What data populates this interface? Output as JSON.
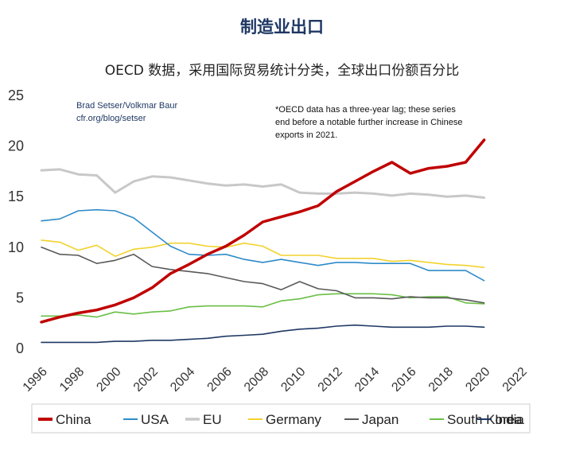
{
  "title": "制造业出口",
  "subtitle": "OECD 数据，采用国际贸易统计分类，全球出口份额百分比",
  "source_lines": [
    "Brad Setser/Volkmar Baur",
    "cfr.org/blog/setser"
  ],
  "note_lines": [
    "*OECD data has a three-year lag; these series",
    "end before a notable further increase in Chinese",
    "exports in 2021."
  ],
  "chart_data": {
    "type": "line",
    "title": "制造业出口",
    "subtitle": "OECD 数据，采用国际贸易统计分类，全球出口份额百分比",
    "xlabel": "",
    "ylabel": "",
    "xlim": [
      1996,
      2022
    ],
    "ylim": [
      0,
      25
    ],
    "yticks": [
      0,
      5,
      10,
      15,
      20,
      25
    ],
    "xticks": [
      1996,
      1998,
      2000,
      2002,
      2004,
      2006,
      2008,
      2010,
      2012,
      2014,
      2016,
      2018,
      2020,
      2022
    ],
    "x": [
      1996,
      1997,
      1998,
      1999,
      2000,
      2001,
      2002,
      2003,
      2004,
      2005,
      2006,
      2007,
      2008,
      2009,
      2010,
      2011,
      2012,
      2013,
      2014,
      2015,
      2016,
      2017,
      2018,
      2019,
      2020
    ],
    "grid": false,
    "legend_position": "bottom",
    "series": [
      {
        "name": "China",
        "color": "#c00000",
        "width": 3.5,
        "values": [
          2.6,
          3.1,
          3.5,
          3.8,
          4.3,
          5.0,
          6.0,
          7.4,
          8.3,
          9.3,
          10.1,
          11.2,
          12.5,
          13.0,
          13.5,
          14.1,
          15.5,
          16.5,
          17.5,
          18.4,
          17.3,
          17.8,
          18.0,
          18.4,
          20.6
        ]
      },
      {
        "name": "USA",
        "color": "#2e8bc8",
        "width": 1.6,
        "values": [
          12.6,
          12.8,
          13.6,
          13.7,
          13.6,
          12.9,
          11.5,
          10.1,
          9.3,
          9.2,
          9.3,
          8.8,
          8.5,
          8.8,
          8.5,
          8.2,
          8.5,
          8.5,
          8.4,
          8.4,
          8.4,
          7.7,
          7.7,
          7.7,
          6.7
        ]
      },
      {
        "name": "EU",
        "color": "#c8c8c8",
        "width": 3,
        "values": [
          17.6,
          17.7,
          17.2,
          17.1,
          15.4,
          16.5,
          17.0,
          16.9,
          16.6,
          16.3,
          16.1,
          16.2,
          16.0,
          16.2,
          15.4,
          15.3,
          15.3,
          15.4,
          15.3,
          15.1,
          15.3,
          15.2,
          15.0,
          15.1,
          14.9
        ]
      },
      {
        "name": "Germany",
        "color": "#f2d22e",
        "width": 1.6,
        "values": [
          10.7,
          10.5,
          9.7,
          10.2,
          9.1,
          9.8,
          10.0,
          10.4,
          10.4,
          10.1,
          10.0,
          10.4,
          10.1,
          9.2,
          9.2,
          9.2,
          8.9,
          8.9,
          8.9,
          8.6,
          8.7,
          8.5,
          8.3,
          8.2,
          8.0
        ]
      },
      {
        "name": "Japan",
        "color": "#595959",
        "width": 1.6,
        "values": [
          10.0,
          9.3,
          9.2,
          8.4,
          8.7,
          9.3,
          8.1,
          7.8,
          7.6,
          7.4,
          7.0,
          6.6,
          6.4,
          5.8,
          6.6,
          5.9,
          5.7,
          5.0,
          5.0,
          4.9,
          5.1,
          5.0,
          5.0,
          4.8,
          4.5
        ]
      },
      {
        "name": "South Korea",
        "color": "#6abf45",
        "width": 1.6,
        "values": [
          3.2,
          3.2,
          3.3,
          3.1,
          3.6,
          3.4,
          3.6,
          3.7,
          4.1,
          4.2,
          4.2,
          4.2,
          4.1,
          4.7,
          4.9,
          5.3,
          5.4,
          5.4,
          5.4,
          5.3,
          5.0,
          5.1,
          5.1,
          4.5,
          4.4
        ]
      },
      {
        "name": "India",
        "color": "#1f3864",
        "width": 1.6,
        "values": [
          0.6,
          0.6,
          0.6,
          0.6,
          0.7,
          0.7,
          0.8,
          0.8,
          0.9,
          1.0,
          1.2,
          1.3,
          1.4,
          1.7,
          1.9,
          2.0,
          2.2,
          2.3,
          2.2,
          2.1,
          2.1,
          2.1,
          2.2,
          2.2,
          2.1
        ]
      }
    ]
  }
}
